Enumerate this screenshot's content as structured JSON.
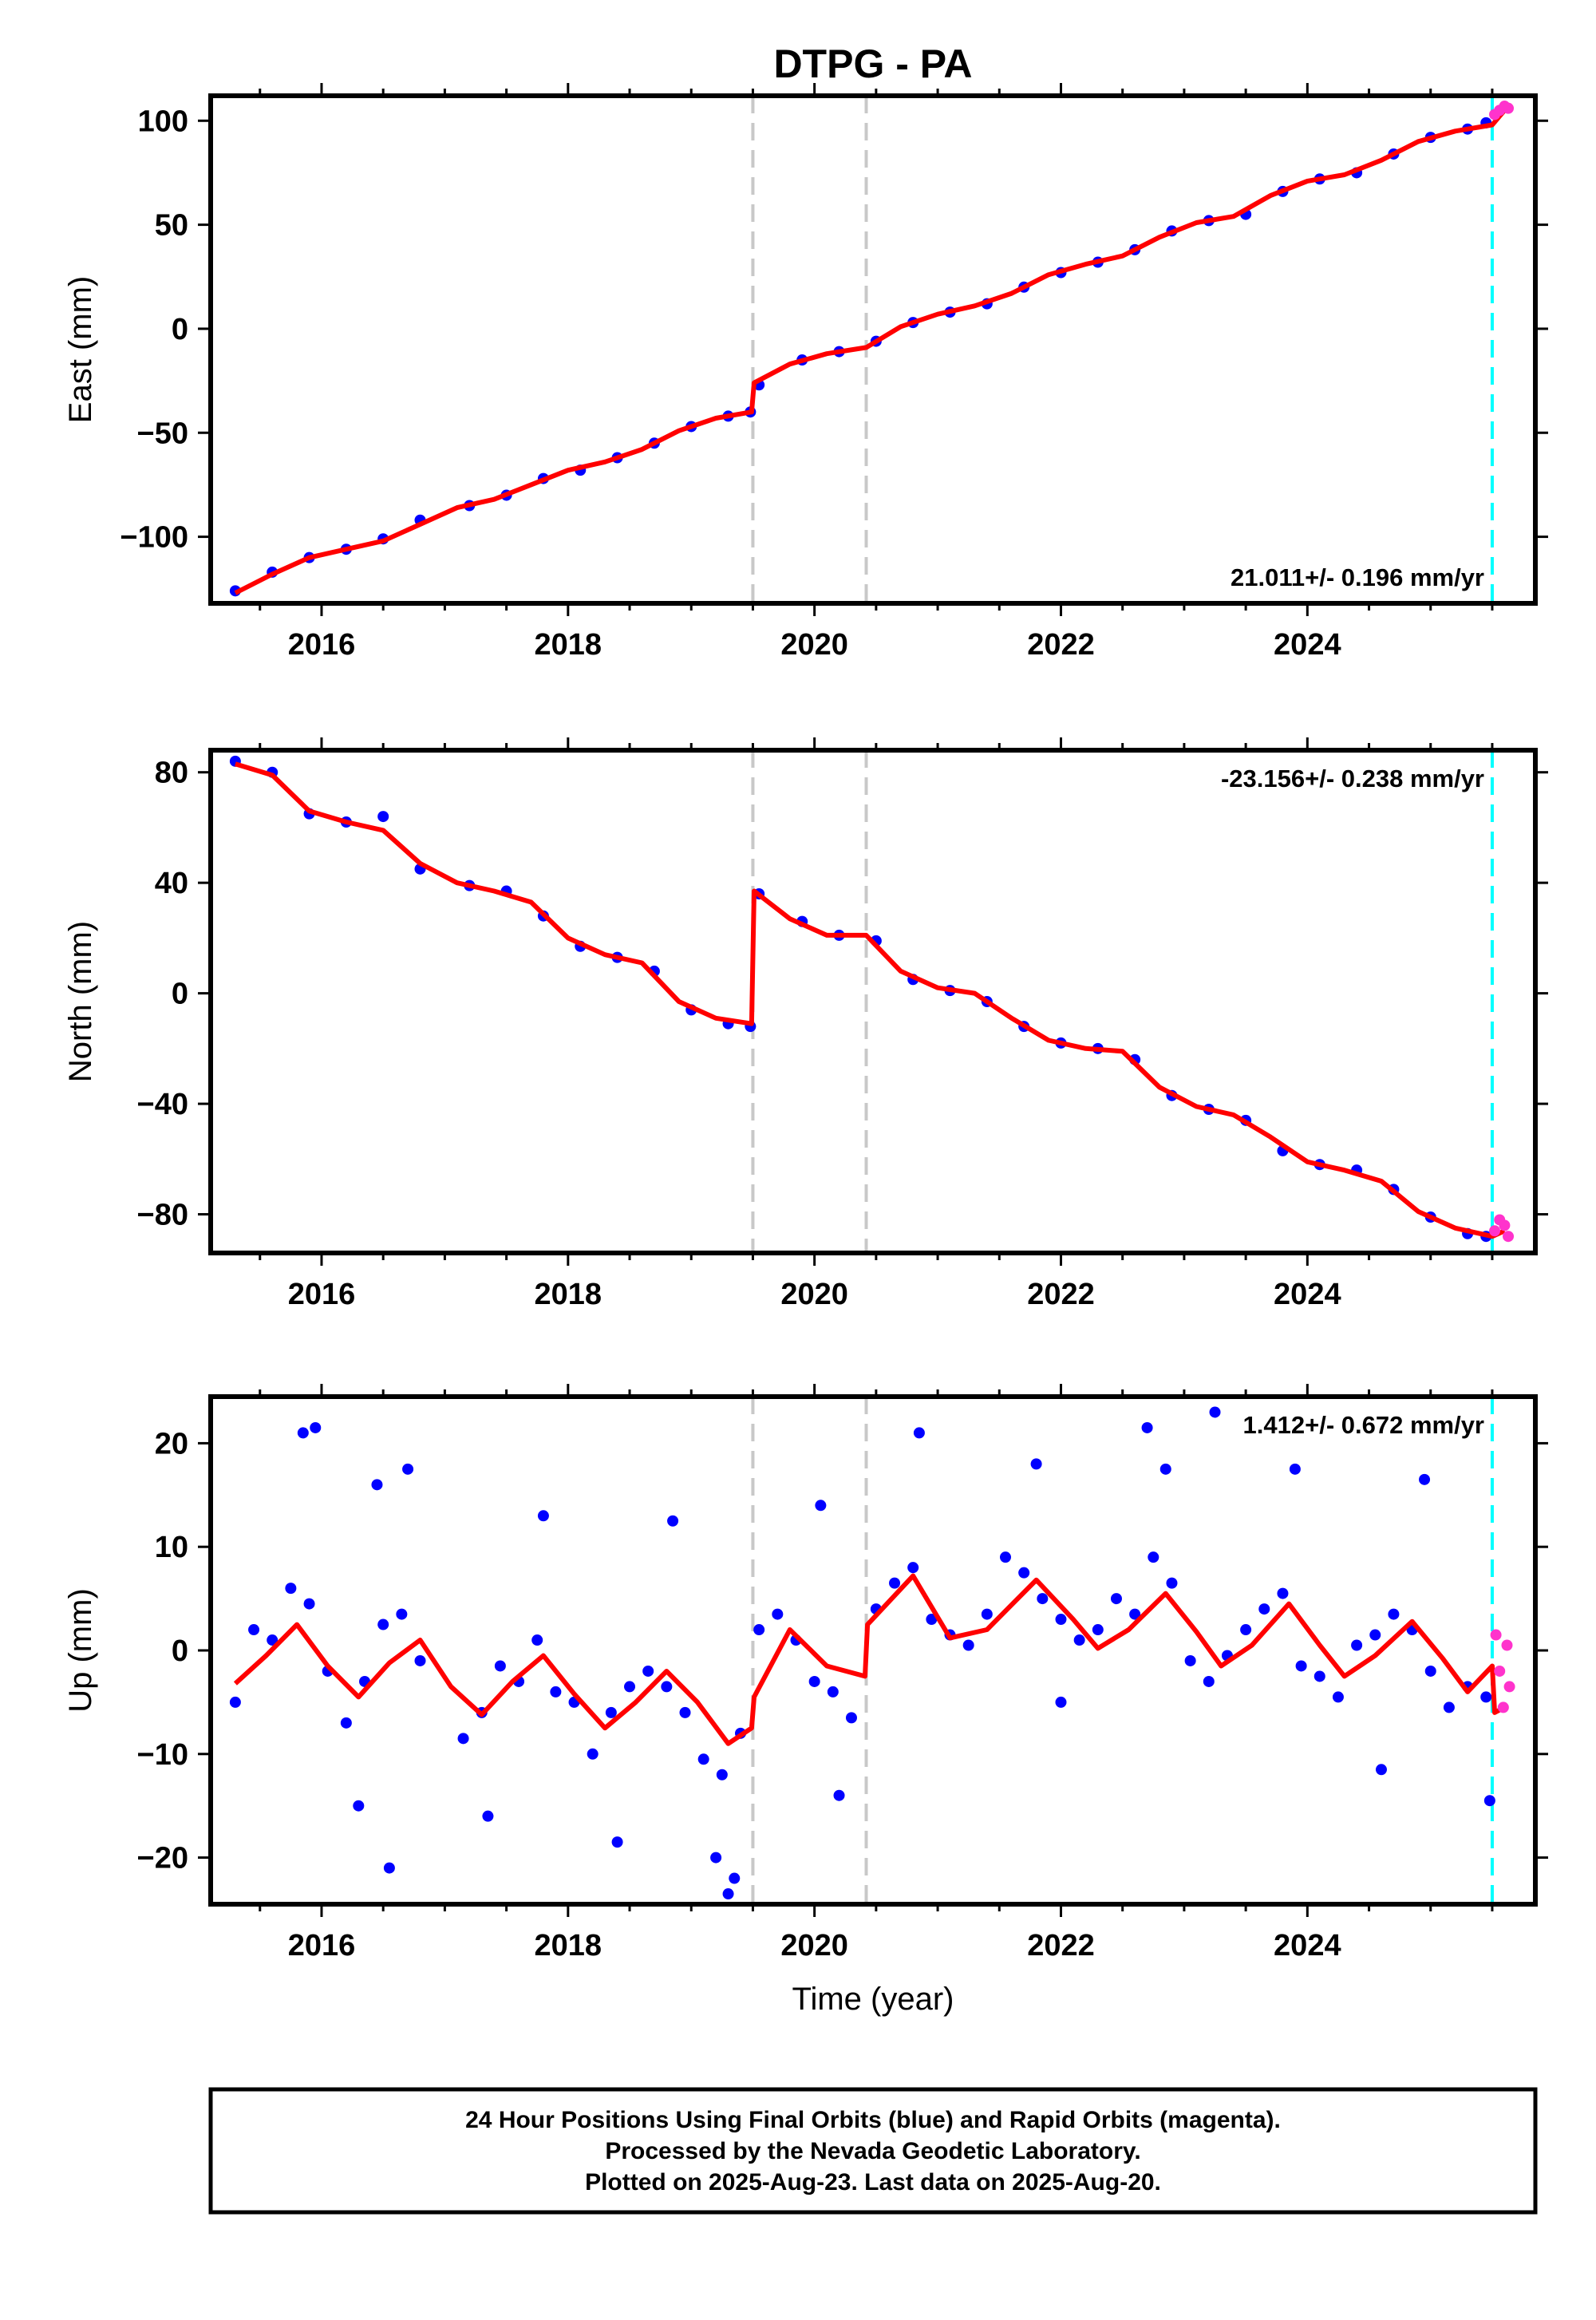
{
  "figure": {
    "title": "DTPG - PA",
    "xlabel": "Time (year)",
    "footer": [
      "24 Hour Positions Using Final Orbits (blue) and Rapid Orbits (magenta).",
      "Processed by the Nevada Geodetic Laboratory.",
      "Plotted on 2025-Aug-23. Last data on 2025-Aug-20."
    ],
    "colors": {
      "final_points": "#0000ff",
      "rapid_points": "#ff33cc",
      "model_fit": "#ff0000",
      "event_lines": "#c8c8c8",
      "last_final_line": "#00ffff",
      "frame": "#000000"
    }
  },
  "chart_data": [
    {
      "type": "scatter",
      "component": "East",
      "ylabel": "East (mm)",
      "rate_label": "21.011+/- 0.196 mm/yr",
      "rate_label_position": "bottom-right",
      "xlim": [
        2015.1,
        2025.85
      ],
      "ylim": [
        -132,
        112
      ],
      "x_ticks": [
        2016,
        2018,
        2020,
        2022,
        2024
      ],
      "y_ticks": [
        -100,
        -50,
        0,
        50,
        100
      ],
      "y_tick_labels": [
        "−100",
        "−50",
        "0",
        "50",
        "100"
      ],
      "event_lines": [
        2019.5,
        2020.42
      ],
      "last_final_line": 2025.5,
      "series": [
        {
          "role": "model_fit",
          "x": [
            2015.3,
            2015.6,
            2015.9,
            2016.2,
            2016.5,
            2016.8,
            2017.1,
            2017.4,
            2017.7,
            2018.0,
            2018.3,
            2018.6,
            2018.9,
            2019.2,
            2019.49,
            2019.51,
            2019.8,
            2020.1,
            2020.42,
            2020.7,
            2021.0,
            2021.3,
            2021.6,
            2021.9,
            2022.2,
            2022.5,
            2022.8,
            2023.1,
            2023.4,
            2023.7,
            2024.0,
            2024.3,
            2024.6,
            2024.9,
            2025.2,
            2025.5,
            2025.6
          ],
          "y": [
            -127,
            -118,
            -110,
            -106,
            -102,
            -94,
            -86,
            -82,
            -75,
            -68,
            -64,
            -58,
            -49,
            -43,
            -40,
            -26,
            -17,
            -12,
            -9,
            1,
            7,
            11,
            17,
            26,
            31,
            35,
            44,
            51,
            54,
            64,
            71,
            74,
            81,
            90,
            95,
            98,
            105
          ]
        },
        {
          "role": "final",
          "x": [
            2015.3,
            2015.6,
            2015.9,
            2016.2,
            2016.5,
            2016.8,
            2017.2,
            2017.5,
            2017.8,
            2018.1,
            2018.4,
            2018.7,
            2019.0,
            2019.3,
            2019.48,
            2019.55,
            2019.9,
            2020.2,
            2020.5,
            2020.8,
            2021.1,
            2021.4,
            2021.7,
            2022.0,
            2022.3,
            2022.6,
            2022.9,
            2023.2,
            2023.5,
            2023.8,
            2024.1,
            2024.4,
            2024.7,
            2025.0,
            2025.3,
            2025.45
          ],
          "y": [
            -126,
            -117,
            -110,
            -106,
            -101,
            -92,
            -85,
            -80,
            -72,
            -68,
            -62,
            -55,
            -47,
            -42,
            -40,
            -27,
            -15,
            -11,
            -6,
            3,
            8,
            12,
            20,
            27,
            32,
            38,
            47,
            52,
            55,
            66,
            72,
            75,
            84,
            92,
            96,
            99
          ]
        },
        {
          "role": "rapid",
          "x": [
            2025.52,
            2025.56,
            2025.6,
            2025.63
          ],
          "y": [
            103,
            105,
            107,
            106
          ]
        }
      ]
    },
    {
      "type": "scatter",
      "component": "North",
      "ylabel": "North (mm)",
      "rate_label": "-23.156+/- 0.238 mm/yr",
      "rate_label_position": "top-right",
      "xlim": [
        2015.1,
        2025.85
      ],
      "ylim": [
        -94,
        88
      ],
      "x_ticks": [
        2016,
        2018,
        2020,
        2022,
        2024
      ],
      "y_ticks": [
        -80,
        -40,
        0,
        40,
        80
      ],
      "y_tick_labels": [
        "−80",
        "−40",
        "0",
        "40",
        "80"
      ],
      "event_lines": [
        2019.5,
        2020.42
      ],
      "last_final_line": 2025.5,
      "series": [
        {
          "role": "model_fit",
          "x": [
            2015.3,
            2015.6,
            2015.9,
            2016.2,
            2016.5,
            2016.8,
            2017.1,
            2017.4,
            2017.7,
            2018.0,
            2018.3,
            2018.6,
            2018.9,
            2019.2,
            2019.49,
            2019.51,
            2019.8,
            2020.1,
            2020.42,
            2020.7,
            2021.0,
            2021.3,
            2021.6,
            2021.9,
            2022.2,
            2022.5,
            2022.8,
            2023.1,
            2023.4,
            2023.7,
            2024.0,
            2024.3,
            2024.6,
            2024.9,
            2025.2,
            2025.5,
            2025.6
          ],
          "y": [
            83,
            79,
            66,
            62,
            59,
            47,
            40,
            37,
            33,
            20,
            14,
            11,
            -3,
            -9,
            -11,
            37,
            27,
            21,
            21,
            8,
            2,
            0,
            -9,
            -17,
            -20,
            -21,
            -34,
            -41,
            -44,
            -52,
            -61,
            -64,
            -68,
            -79,
            -85,
            -88,
            -86
          ]
        },
        {
          "role": "final",
          "x": [
            2015.3,
            2015.6,
            2015.9,
            2016.2,
            2016.5,
            2016.8,
            2017.2,
            2017.5,
            2017.8,
            2018.1,
            2018.4,
            2018.7,
            2019.0,
            2019.3,
            2019.48,
            2019.55,
            2019.9,
            2020.2,
            2020.5,
            2020.8,
            2021.1,
            2021.4,
            2021.7,
            2022.0,
            2022.3,
            2022.6,
            2022.9,
            2023.2,
            2023.5,
            2023.8,
            2024.1,
            2024.4,
            2024.7,
            2025.0,
            2025.3,
            2025.45
          ],
          "y": [
            84,
            80,
            65,
            62,
            64,
            45,
            39,
            37,
            28,
            17,
            13,
            8,
            -6,
            -11,
            -12,
            36,
            26,
            21,
            19,
            5,
            1,
            -3,
            -12,
            -18,
            -20,
            -24,
            -37,
            -42,
            -46,
            -57,
            -62,
            -64,
            -71,
            -81,
            -87,
            -88
          ]
        },
        {
          "role": "rapid",
          "x": [
            2025.52,
            2025.56,
            2025.6,
            2025.63
          ],
          "y": [
            -86,
            -82,
            -84,
            -88
          ]
        }
      ]
    },
    {
      "type": "scatter",
      "component": "Up",
      "ylabel": "Up (mm)",
      "rate_label": "1.412+/- 0.672 mm/yr",
      "rate_label_position": "top-right",
      "xlim": [
        2015.1,
        2025.85
      ],
      "ylim": [
        -24.5,
        24.5
      ],
      "x_ticks": [
        2016,
        2018,
        2020,
        2022,
        2024
      ],
      "y_ticks": [
        -20,
        -10,
        0,
        10,
        20
      ],
      "y_tick_labels": [
        "−20",
        "−10",
        "0",
        "10",
        "20"
      ],
      "event_lines": [
        2019.5,
        2020.42
      ],
      "last_final_line": 2025.5,
      "series": [
        {
          "role": "model_fit",
          "x": [
            2015.3,
            2015.55,
            2015.8,
            2016.05,
            2016.3,
            2016.55,
            2016.8,
            2017.05,
            2017.3,
            2017.55,
            2017.8,
            2018.05,
            2018.3,
            2018.55,
            2018.8,
            2019.05,
            2019.3,
            2019.49,
            2019.51,
            2019.8,
            2020.1,
            2020.41,
            2020.43,
            2020.8,
            2021.1,
            2021.4,
            2021.8,
            2022.1,
            2022.3,
            2022.55,
            2022.85,
            2023.1,
            2023.3,
            2023.55,
            2023.85,
            2024.1,
            2024.3,
            2024.55,
            2024.85,
            2025.1,
            2025.3,
            2025.5,
            2025.52,
            2025.6
          ],
          "y": [
            -3.2,
            -0.5,
            2.5,
            -1.5,
            -4.5,
            -1.2,
            1.0,
            -3.5,
            -6.2,
            -3.0,
            -0.5,
            -4.2,
            -7.5,
            -5.0,
            -2.0,
            -5.0,
            -9.0,
            -7.5,
            -4.5,
            2.0,
            -1.5,
            -2.5,
            2.5,
            7.2,
            1.2,
            2.0,
            6.8,
            3.0,
            0.2,
            2.0,
            5.5,
            1.8,
            -1.5,
            0.5,
            4.5,
            0.5,
            -2.5,
            -0.5,
            2.8,
            -0.8,
            -4.0,
            -1.5,
            -6.0,
            -5.5
          ]
        },
        {
          "role": "final",
          "x": [
            2015.3,
            2015.45,
            2015.6,
            2015.75,
            2015.9,
            2016.05,
            2016.2,
            2016.35,
            2016.5,
            2016.65,
            2016.8,
            2017.15,
            2017.3,
            2017.45,
            2017.6,
            2017.75,
            2017.9,
            2018.05,
            2018.2,
            2018.35,
            2018.5,
            2018.65,
            2018.8,
            2018.95,
            2019.1,
            2019.25,
            2019.4,
            2019.55,
            2019.7,
            2019.85,
            2020.0,
            2020.15,
            2020.3,
            2020.5,
            2020.65,
            2020.8,
            2020.95,
            2021.1,
            2021.25,
            2021.4,
            2021.55,
            2021.7,
            2021.85,
            2022.0,
            2022.15,
            2022.3,
            2022.45,
            2022.6,
            2022.75,
            2022.9,
            2023.05,
            2023.2,
            2023.35,
            2023.5,
            2023.65,
            2023.8,
            2023.95,
            2024.1,
            2024.25,
            2024.4,
            2024.55,
            2024.7,
            2024.85,
            2025.0,
            2025.15,
            2025.3,
            2025.45,
            2015.85,
            2015.95,
            2016.45,
            2016.7,
            2017.8,
            2018.85,
            2019.2,
            2019.3,
            2020.05,
            2020.85,
            2021.8,
            2022.7,
            2022.85,
            2023.25,
            2023.9,
            2024.95,
            2016.3,
            2016.55,
            2017.35,
            2018.4,
            2019.35,
            2020.2,
            2022.0,
            2024.6,
            2025.48
          ],
          "y": [
            -5.0,
            2.0,
            1.0,
            6.0,
            4.5,
            -2.0,
            -7.0,
            -3.0,
            2.5,
            3.5,
            -1.0,
            -8.5,
            -6.0,
            -1.5,
            -3.0,
            1.0,
            -4.0,
            -5.0,
            -10.0,
            -6.0,
            -3.5,
            -2.0,
            -3.5,
            -6.0,
            -10.5,
            -12.0,
            -8.0,
            2.0,
            3.5,
            1.0,
            -3.0,
            -4.0,
            -6.5,
            4.0,
            6.5,
            8.0,
            3.0,
            1.5,
            0.5,
            3.5,
            9.0,
            7.5,
            5.0,
            3.0,
            1.0,
            2.0,
            5.0,
            3.5,
            9.0,
            6.5,
            -1.0,
            -3.0,
            -0.5,
            2.0,
            4.0,
            5.5,
            -1.5,
            -2.5,
            -4.5,
            0.5,
            1.5,
            3.5,
            2.0,
            -2.0,
            -5.5,
            -3.5,
            -4.5,
            21.0,
            21.5,
            16.0,
            17.5,
            13.0,
            12.5,
            -20.0,
            -23.5,
            14.0,
            21.0,
            18.0,
            21.5,
            17.5,
            23.0,
            17.5,
            16.5,
            -15.0,
            -21.0,
            -16.0,
            -18.5,
            -22.0,
            -14.0,
            -5.0,
            -11.5,
            -14.5
          ]
        },
        {
          "role": "rapid",
          "x": [
            2025.53,
            2025.56,
            2025.59,
            2025.62,
            2025.64
          ],
          "y": [
            1.5,
            -2.0,
            -5.5,
            0.5,
            -3.5
          ]
        }
      ]
    }
  ]
}
